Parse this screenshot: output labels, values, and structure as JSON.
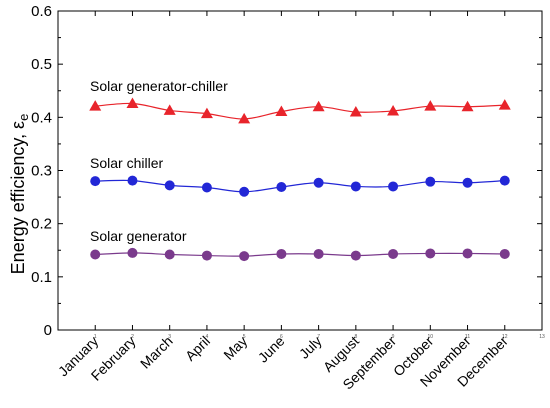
{
  "chart_data": {
    "type": "line",
    "categories": [
      "January",
      "February",
      "March",
      "April",
      "May",
      "June",
      "July",
      "August",
      "September",
      "October",
      "November",
      "December"
    ],
    "x_minor_ticks": [
      "1",
      "2",
      "3",
      "4",
      "5",
      "6",
      "7",
      "8",
      "9",
      "10",
      "11",
      "12",
      "13"
    ],
    "ylabel": "Energy efficiency, ",
    "ylabel_symbol": "ε",
    "ylabel_subscript": "e",
    "ylim": [
      0,
      0.6
    ],
    "yticks": [
      "0",
      "0.1",
      "0.2",
      "0.3",
      "0.4",
      "0.5",
      "0.6"
    ],
    "xlim": [
      0,
      13
    ],
    "grid": false,
    "series": [
      {
        "name": "Solar generator-chiller",
        "color": "#e8242b",
        "marker": "triangle",
        "values": [
          0.421,
          0.426,
          0.413,
          0.407,
          0.397,
          0.411,
          0.42,
          0.41,
          0.412,
          0.421,
          0.42,
          0.423
        ]
      },
      {
        "name": "Solar chiller",
        "color": "#2227d6",
        "marker": "circle",
        "values": [
          0.28,
          0.281,
          0.272,
          0.268,
          0.26,
          0.269,
          0.277,
          0.27,
          0.27,
          0.279,
          0.277,
          0.281
        ]
      },
      {
        "name": "Solar generator",
        "color": "#7a3a8c",
        "marker": "circle",
        "values": [
          0.142,
          0.145,
          0.142,
          0.14,
          0.139,
          0.143,
          0.143,
          0.14,
          0.143,
          0.144,
          0.144,
          0.143
        ]
      }
    ]
  }
}
